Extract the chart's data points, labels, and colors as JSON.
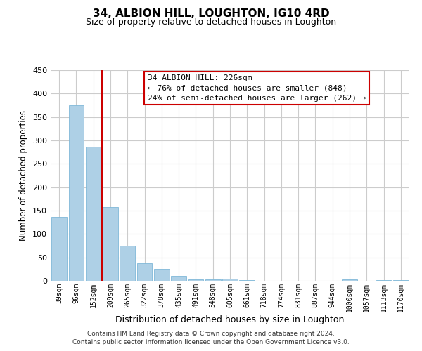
{
  "title": "34, ALBION HILL, LOUGHTON, IG10 4RD",
  "subtitle": "Size of property relative to detached houses in Loughton",
  "xlabel": "Distribution of detached houses by size in Loughton",
  "ylabel": "Number of detached properties",
  "bar_labels": [
    "39sqm",
    "96sqm",
    "152sqm",
    "209sqm",
    "265sqm",
    "322sqm",
    "378sqm",
    "435sqm",
    "491sqm",
    "548sqm",
    "605sqm",
    "661sqm",
    "718sqm",
    "774sqm",
    "831sqm",
    "887sqm",
    "944sqm",
    "1000sqm",
    "1057sqm",
    "1113sqm",
    "1170sqm"
  ],
  "bar_values": [
    137,
    375,
    287,
    158,
    75,
    38,
    25,
    11,
    3,
    3,
    5,
    2,
    0,
    0,
    0,
    0,
    0,
    3,
    0,
    2,
    2
  ],
  "bar_color": "#aed0e6",
  "bar_edge_color": "#7fb8d8",
  "vline_x": 2.5,
  "vline_color": "#cc0000",
  "ylim": [
    0,
    450
  ],
  "yticks": [
    0,
    50,
    100,
    150,
    200,
    250,
    300,
    350,
    400,
    450
  ],
  "annotation_title": "34 ALBION HILL: 226sqm",
  "annotation_line1": "← 76% of detached houses are smaller (848)",
  "annotation_line2": "24% of semi-detached houses are larger (262) →",
  "annotation_box_color": "#ffffff",
  "annotation_box_edge": "#cc0000",
  "footer_line1": "Contains HM Land Registry data © Crown copyright and database right 2024.",
  "footer_line2": "Contains public sector information licensed under the Open Government Licence v3.0.",
  "background_color": "#ffffff",
  "grid_color": "#cccccc"
}
